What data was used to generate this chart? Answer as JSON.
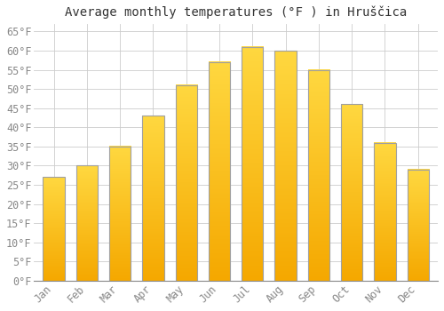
{
  "title": "Average monthly temperatures (°F ) in Hruščica",
  "months": [
    "Jan",
    "Feb",
    "Mar",
    "Apr",
    "May",
    "Jun",
    "Jul",
    "Aug",
    "Sep",
    "Oct",
    "Nov",
    "Dec"
  ],
  "values": [
    27,
    30,
    35,
    43,
    51,
    57,
    61,
    60,
    55,
    46,
    36,
    29
  ],
  "bar_color_bottom": "#F5A800",
  "bar_color_top": "#FFD840",
  "bar_edge_color": "#A0A0A0",
  "background_color": "#FFFFFF",
  "grid_color": "#CCCCCC",
  "text_color": "#888888",
  "ylim": [
    0,
    67
  ],
  "yticks": [
    0,
    5,
    10,
    15,
    20,
    25,
    30,
    35,
    40,
    45,
    50,
    55,
    60,
    65
  ],
  "title_fontsize": 10,
  "tick_fontsize": 8.5,
  "font_family": "monospace"
}
